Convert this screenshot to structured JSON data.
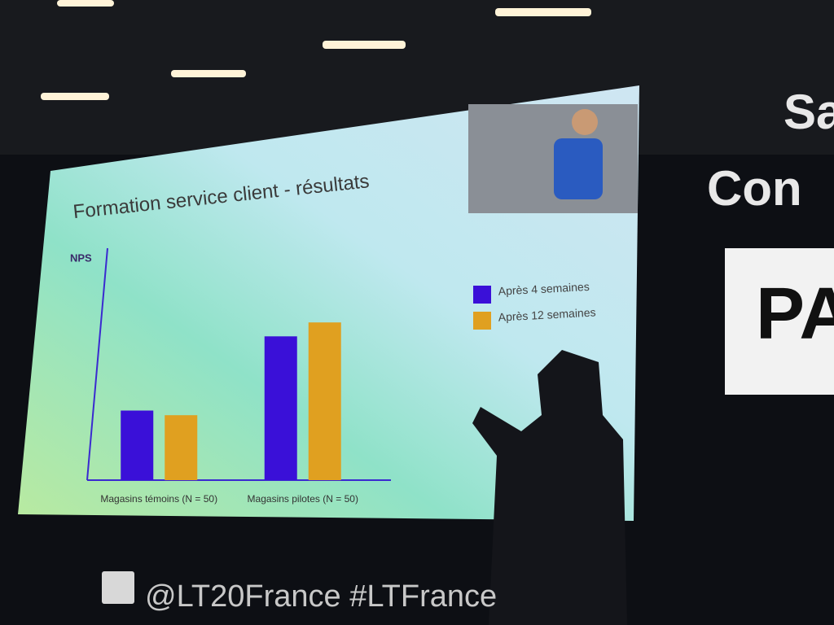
{
  "chart_data": {
    "type": "bar",
    "title": "Formation service client - résultats",
    "y_label": "NPS",
    "categories": [
      "Magasins témoins (N = 50)",
      "Magasins pilotes (N = 50)"
    ],
    "series": [
      {
        "name": "Après 4 semaines",
        "color": "#3a10d8",
        "values": [
          30,
          62
        ]
      },
      {
        "name": "Après 12 semaines",
        "color": "#e0a020",
        "values": [
          28,
          68
        ]
      }
    ],
    "ylim": [
      0,
      100
    ],
    "axis_color": "#3a2ad0"
  },
  "scene": {
    "social": "@LT20France #LTFrance",
    "banner": [
      "Sa",
      "Con",
      "PA"
    ]
  }
}
